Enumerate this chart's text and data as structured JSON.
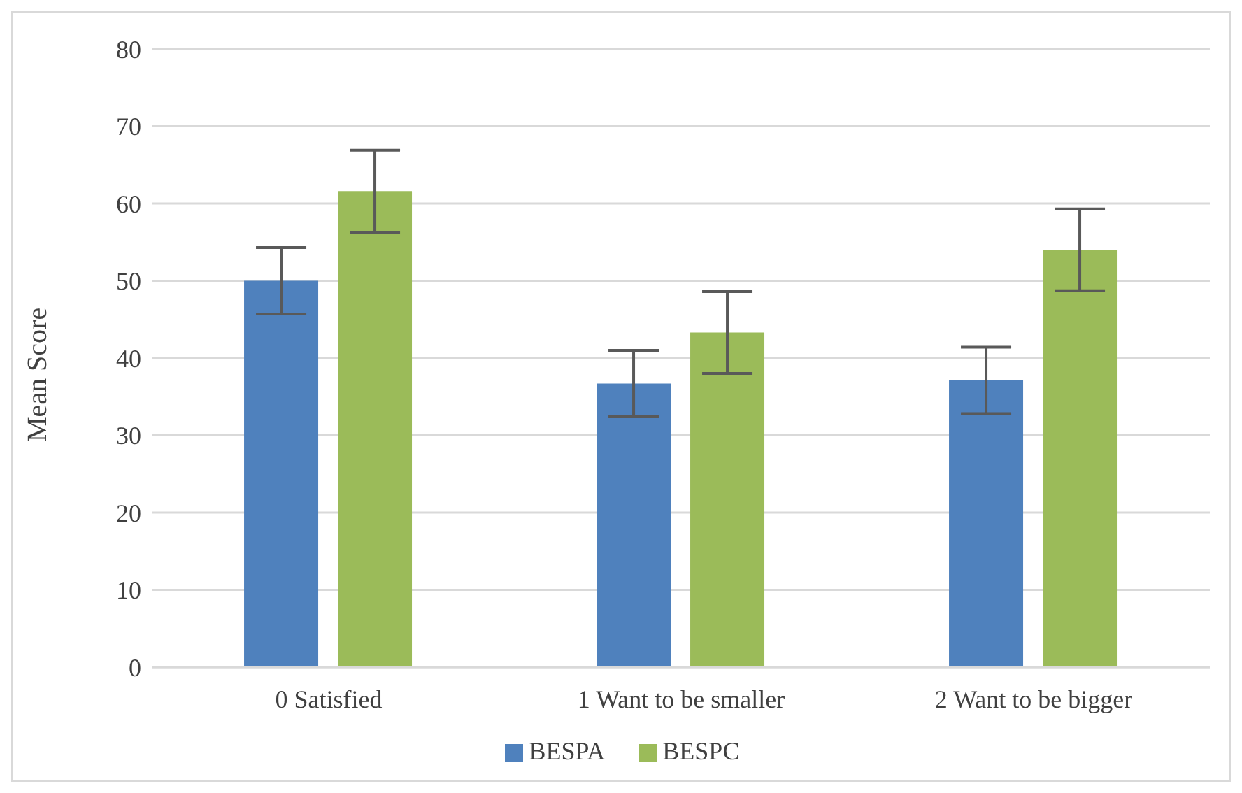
{
  "chart_data": {
    "type": "bar",
    "ylabel": "Mean Score",
    "categories": [
      "0 Satisfied",
      "1 Want to be smaller",
      "2 Want to be bigger"
    ],
    "series": [
      {
        "name": "BESPA",
        "color": "#4f81bd",
        "values": [
          50,
          36.7,
          37.1
        ],
        "errors": [
          4.3,
          4.3,
          4.3
        ]
      },
      {
        "name": "BESPC",
        "color": "#9bbb59",
        "values": [
          61.6,
          43.3,
          54
        ],
        "errors": [
          5.3,
          5.3,
          5.3
        ]
      }
    ],
    "ylim": [
      0,
      80
    ],
    "yticks": [
      0,
      10,
      20,
      30,
      40,
      50,
      60,
      70,
      80
    ],
    "grid": "y",
    "legend": "bottom"
  }
}
